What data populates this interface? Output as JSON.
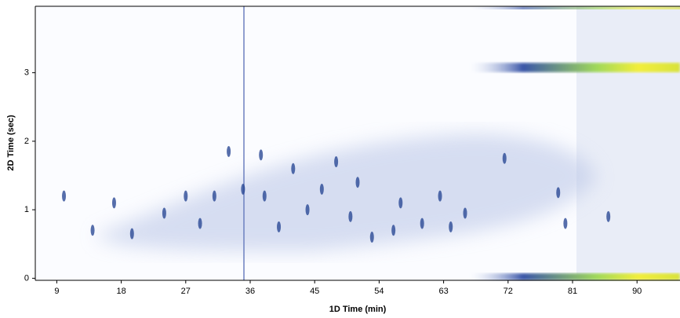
{
  "chart_data": {
    "type": "contour",
    "x_label": "1D Time (min)",
    "y_label": "2D Time (sec)",
    "xlim": [
      6,
      96
    ],
    "ylim": [
      -0.03,
      3.97
    ],
    "xticks": [
      9,
      18,
      27,
      36,
      45,
      54,
      63,
      72,
      81,
      90
    ],
    "yticks": [
      0,
      1,
      2,
      3
    ],
    "color": "#1f3f8f",
    "peaks": {
      "x": [
        35,
        37.5,
        19.5,
        27,
        48,
        56,
        62.5,
        71.5,
        46,
        42,
        53,
        66,
        60,
        14,
        24,
        31,
        33,
        50,
        57,
        40,
        44,
        80,
        79,
        86,
        10,
        17,
        51,
        64,
        38,
        29
      ],
      "y": [
        1.3,
        1.8,
        0.65,
        1.2,
        1.7,
        0.7,
        1.2,
        1.75,
        1.3,
        1.6,
        0.6,
        0.95,
        0.8,
        0.7,
        0.95,
        1.2,
        1.85,
        0.9,
        1.1,
        0.75,
        1.0,
        0.8,
        1.25,
        0.9,
        1.2,
        1.1,
        1.4,
        0.75,
        1.2,
        0.8
      ]
    }
  }
}
